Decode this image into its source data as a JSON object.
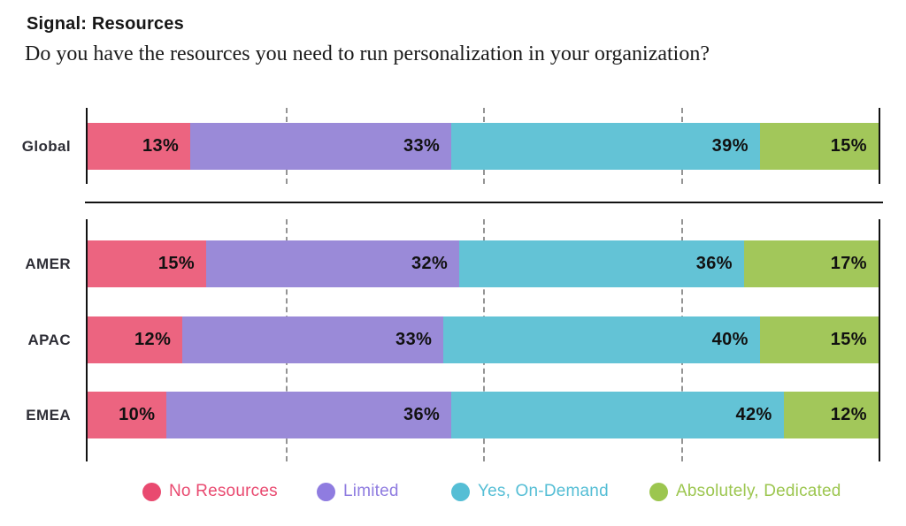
{
  "header": {
    "title": "Signal: Resources",
    "subtitle": "Do you have the resources you need to run personalization in your organization?"
  },
  "chart_data": {
    "type": "bar",
    "orientation": "horizontal",
    "stacked": true,
    "unit": "%",
    "categories": [
      "Global",
      "AMER",
      "APAC",
      "EMEA"
    ],
    "groups": [
      {
        "categories": [
          "Global"
        ]
      },
      {
        "categories": [
          "AMER",
          "APAC",
          "EMEA"
        ]
      }
    ],
    "series": [
      {
        "name": "No Resources",
        "color": "#EC6480",
        "legend_color": "#E94A70",
        "values": [
          13,
          15,
          12,
          10
        ]
      },
      {
        "name": "Limited",
        "color": "#9A8AD8",
        "legend_color": "#8F7CE0",
        "values": [
          33,
          32,
          33,
          36
        ]
      },
      {
        "name": "Yes, On-Demand",
        "color": "#63C3D6",
        "legend_color": "#55BED5",
        "values": [
          39,
          36,
          40,
          42
        ]
      },
      {
        "name": "Absolutely, Dedicated",
        "color": "#A2C75A",
        "legend_color": "#9CC64F",
        "values": [
          15,
          17,
          15,
          12
        ]
      }
    ],
    "axis": {
      "xlim": [
        0,
        100
      ],
      "gridlines_pct": [
        25,
        50,
        75
      ],
      "gridline_style": "dashed"
    },
    "legend_position": "bottom",
    "value_labels": "inside-right"
  }
}
